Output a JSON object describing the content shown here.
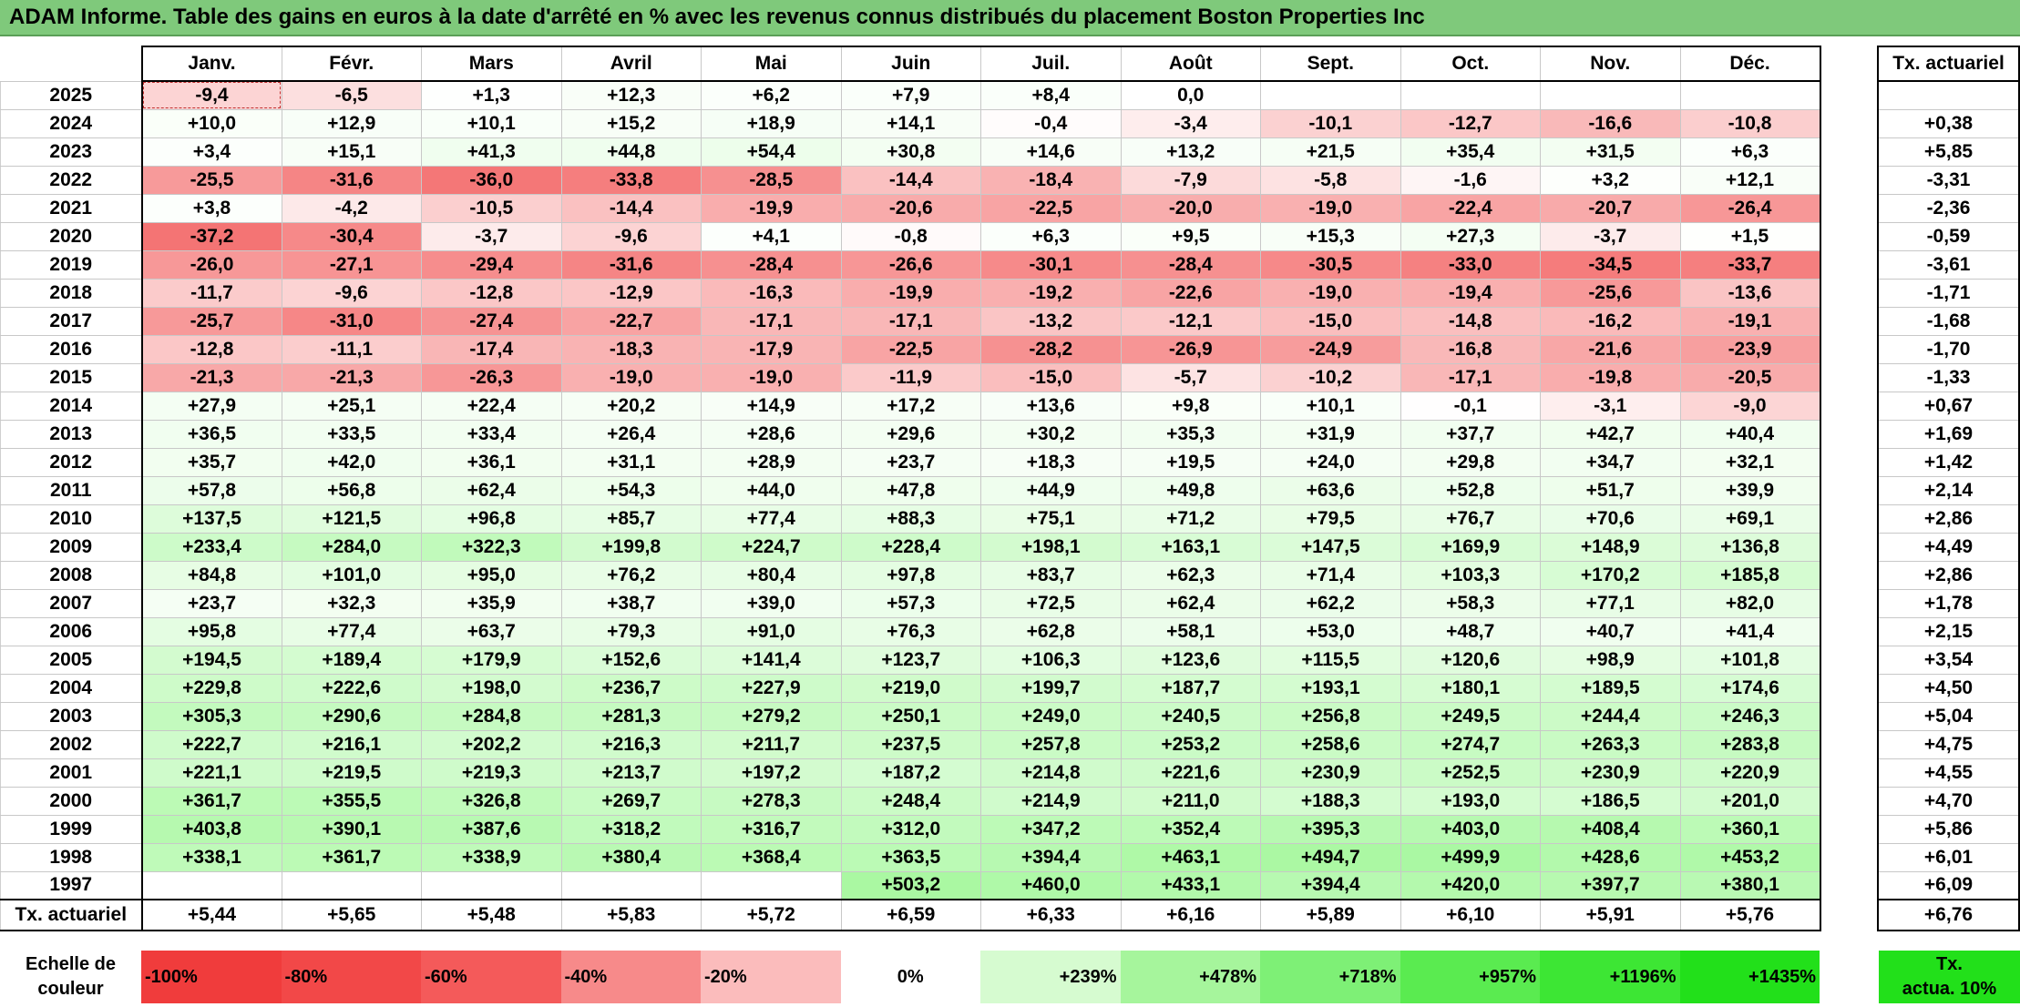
{
  "title": "ADAM Informe. Table des gains en euros à la date d'arrêté en % avec les revenus connus distribués du placement Boston Properties Inc",
  "months": [
    "Janv.",
    "Févr.",
    "Mars",
    "Avril",
    "Mai",
    "Juin",
    "Juil.",
    "Août",
    "Sept.",
    "Oct.",
    "Nov.",
    "Déc."
  ],
  "side_header": "Tx. actuariel",
  "rows": [
    {
      "year": "2025",
      "values": [
        "-9,4",
        "-6,5",
        "+1,3",
        "+12,3",
        "+6,2",
        "+7,9",
        "+8,4",
        "0,0",
        "",
        "",
        "",
        ""
      ],
      "rate": ""
    },
    {
      "year": "2024",
      "values": [
        "+10,0",
        "+12,9",
        "+10,1",
        "+15,2",
        "+18,9",
        "+14,1",
        "-0,4",
        "-3,4",
        "-10,1",
        "-12,7",
        "-16,6",
        "-10,8"
      ],
      "rate": "+0,38"
    },
    {
      "year": "2023",
      "values": [
        "+3,4",
        "+15,1",
        "+41,3",
        "+44,8",
        "+54,4",
        "+30,8",
        "+14,6",
        "+13,2",
        "+21,5",
        "+35,4",
        "+31,5",
        "+6,3"
      ],
      "rate": "+5,85"
    },
    {
      "year": "2022",
      "values": [
        "-25,5",
        "-31,6",
        "-36,0",
        "-33,8",
        "-28,5",
        "-14,4",
        "-18,4",
        "-7,9",
        "-5,8",
        "-1,6",
        "+3,2",
        "+12,1"
      ],
      "rate": "-3,31"
    },
    {
      "year": "2021",
      "values": [
        "+3,8",
        "-4,2",
        "-10,5",
        "-14,4",
        "-19,9",
        "-20,6",
        "-22,5",
        "-20,0",
        "-19,0",
        "-22,4",
        "-20,7",
        "-26,4"
      ],
      "rate": "-2,36"
    },
    {
      "year": "2020",
      "values": [
        "-37,2",
        "-30,4",
        "-3,7",
        "-9,6",
        "+4,1",
        "-0,8",
        "+6,3",
        "+9,5",
        "+15,3",
        "+27,3",
        "-3,7",
        "+1,5"
      ],
      "rate": "-0,59"
    },
    {
      "year": "2019",
      "values": [
        "-26,0",
        "-27,1",
        "-29,4",
        "-31,6",
        "-28,4",
        "-26,6",
        "-30,1",
        "-28,4",
        "-30,5",
        "-33,0",
        "-34,5",
        "-33,7"
      ],
      "rate": "-3,61"
    },
    {
      "year": "2018",
      "values": [
        "-11,7",
        "-9,6",
        "-12,8",
        "-12,9",
        "-16,3",
        "-19,9",
        "-19,2",
        "-22,6",
        "-19,0",
        "-19,4",
        "-25,6",
        "-13,6"
      ],
      "rate": "-1,71"
    },
    {
      "year": "2017",
      "values": [
        "-25,7",
        "-31,0",
        "-27,4",
        "-22,7",
        "-17,1",
        "-17,1",
        "-13,2",
        "-12,1",
        "-15,0",
        "-14,8",
        "-16,2",
        "-19,1"
      ],
      "rate": "-1,68"
    },
    {
      "year": "2016",
      "values": [
        "-12,8",
        "-11,1",
        "-17,4",
        "-18,3",
        "-17,9",
        "-22,5",
        "-28,2",
        "-26,9",
        "-24,9",
        "-16,8",
        "-21,6",
        "-23,9"
      ],
      "rate": "-1,70"
    },
    {
      "year": "2015",
      "values": [
        "-21,3",
        "-21,3",
        "-26,3",
        "-19,0",
        "-19,0",
        "-11,9",
        "-15,0",
        "-5,7",
        "-10,2",
        "-17,1",
        "-19,8",
        "-20,5"
      ],
      "rate": "-1,33"
    },
    {
      "year": "2014",
      "values": [
        "+27,9",
        "+25,1",
        "+22,4",
        "+20,2",
        "+14,9",
        "+17,2",
        "+13,6",
        "+9,8",
        "+10,1",
        "-0,1",
        "-3,1",
        "-9,0"
      ],
      "rate": "+0,67"
    },
    {
      "year": "2013",
      "values": [
        "+36,5",
        "+33,5",
        "+33,4",
        "+26,4",
        "+28,6",
        "+29,6",
        "+30,2",
        "+35,3",
        "+31,9",
        "+37,7",
        "+42,7",
        "+40,4"
      ],
      "rate": "+1,69"
    },
    {
      "year": "2012",
      "values": [
        "+35,7",
        "+42,0",
        "+36,1",
        "+31,1",
        "+28,9",
        "+23,7",
        "+18,3",
        "+19,5",
        "+24,0",
        "+29,8",
        "+34,7",
        "+32,1"
      ],
      "rate": "+1,42"
    },
    {
      "year": "2011",
      "values": [
        "+57,8",
        "+56,8",
        "+62,4",
        "+54,3",
        "+44,0",
        "+47,8",
        "+44,9",
        "+49,8",
        "+63,6",
        "+52,8",
        "+51,7",
        "+39,9"
      ],
      "rate": "+2,14"
    },
    {
      "year": "2010",
      "values": [
        "+137,5",
        "+121,5",
        "+96,8",
        "+85,7",
        "+77,4",
        "+88,3",
        "+75,1",
        "+71,2",
        "+79,5",
        "+76,7",
        "+70,6",
        "+69,1"
      ],
      "rate": "+2,86"
    },
    {
      "year": "2009",
      "values": [
        "+233,4",
        "+284,0",
        "+322,3",
        "+199,8",
        "+224,7",
        "+228,4",
        "+198,1",
        "+163,1",
        "+147,5",
        "+169,9",
        "+148,9",
        "+136,8"
      ],
      "rate": "+4,49"
    },
    {
      "year": "2008",
      "values": [
        "+84,8",
        "+101,0",
        "+95,0",
        "+76,2",
        "+80,4",
        "+97,8",
        "+83,7",
        "+62,3",
        "+71,4",
        "+103,3",
        "+170,2",
        "+185,8"
      ],
      "rate": "+2,86"
    },
    {
      "year": "2007",
      "values": [
        "+23,7",
        "+32,3",
        "+35,9",
        "+38,7",
        "+39,0",
        "+57,3",
        "+72,5",
        "+62,4",
        "+62,2",
        "+58,3",
        "+77,1",
        "+82,0"
      ],
      "rate": "+1,78"
    },
    {
      "year": "2006",
      "values": [
        "+95,8",
        "+77,4",
        "+63,7",
        "+79,3",
        "+91,0",
        "+76,3",
        "+62,8",
        "+58,1",
        "+53,0",
        "+48,7",
        "+40,7",
        "+41,4"
      ],
      "rate": "+2,15"
    },
    {
      "year": "2005",
      "values": [
        "+194,5",
        "+189,4",
        "+179,9",
        "+152,6",
        "+141,4",
        "+123,7",
        "+106,3",
        "+123,6",
        "+115,5",
        "+120,6",
        "+98,9",
        "+101,8"
      ],
      "rate": "+3,54"
    },
    {
      "year": "2004",
      "values": [
        "+229,8",
        "+222,6",
        "+198,0",
        "+236,7",
        "+227,9",
        "+219,0",
        "+199,7",
        "+187,7",
        "+193,1",
        "+180,1",
        "+189,5",
        "+174,6"
      ],
      "rate": "+4,50"
    },
    {
      "year": "2003",
      "values": [
        "+305,3",
        "+290,6",
        "+284,8",
        "+281,3",
        "+279,2",
        "+250,1",
        "+249,0",
        "+240,5",
        "+256,8",
        "+249,5",
        "+244,4",
        "+246,3"
      ],
      "rate": "+5,04"
    },
    {
      "year": "2002",
      "values": [
        "+222,7",
        "+216,1",
        "+202,2",
        "+216,3",
        "+211,7",
        "+237,5",
        "+257,8",
        "+253,2",
        "+258,6",
        "+274,7",
        "+263,3",
        "+283,8"
      ],
      "rate": "+4,75"
    },
    {
      "year": "2001",
      "values": [
        "+221,1",
        "+219,5",
        "+219,3",
        "+213,7",
        "+197,2",
        "+187,2",
        "+214,8",
        "+221,6",
        "+230,9",
        "+252,5",
        "+230,9",
        "+220,9"
      ],
      "rate": "+4,55"
    },
    {
      "year": "2000",
      "values": [
        "+361,7",
        "+355,5",
        "+326,8",
        "+269,7",
        "+278,3",
        "+248,4",
        "+214,9",
        "+211,0",
        "+188,3",
        "+193,0",
        "+186,5",
        "+201,0"
      ],
      "rate": "+4,70"
    },
    {
      "year": "1999",
      "values": [
        "+403,8",
        "+390,1",
        "+387,6",
        "+318,2",
        "+316,7",
        "+312,0",
        "+347,2",
        "+352,4",
        "+395,3",
        "+403,0",
        "+408,4",
        "+360,1"
      ],
      "rate": "+5,86"
    },
    {
      "year": "1998",
      "values": [
        "+338,1",
        "+361,7",
        "+338,9",
        "+380,4",
        "+368,4",
        "+363,5",
        "+394,4",
        "+463,1",
        "+494,7",
        "+499,9",
        "+428,6",
        "+453,2"
      ],
      "rate": "+6,01"
    },
    {
      "year": "1997",
      "values": [
        "",
        "",
        "",
        "",
        "",
        "+503,2",
        "+460,0",
        "+433,1",
        "+394,4",
        "+420,0",
        "+397,7",
        "+380,1"
      ],
      "rate": "+6,09"
    }
  ],
  "totals": {
    "label": "Tx. actuariel",
    "values": [
      "+5,44",
      "+5,65",
      "+5,48",
      "+5,83",
      "+5,72",
      "+6,59",
      "+6,33",
      "+6,16",
      "+5,89",
      "+6,10",
      "+5,91",
      "+5,76"
    ],
    "rate": "+6,76"
  },
  "scale": {
    "label_line1": "Echelle de",
    "label_line2": "couleur",
    "items": [
      {
        "label": "-100%",
        "color": "#f03c3c"
      },
      {
        "label": "-80%",
        "color": "#f24848"
      },
      {
        "label": "-60%",
        "color": "#f45a5a"
      },
      {
        "label": "-40%",
        "color": "#f78a8a"
      },
      {
        "label": "-20%",
        "color": "#fbbcbc"
      },
      {
        "label": "0%",
        "color": "#ffffff"
      },
      {
        "label": "+239%",
        "color": "#d6fbd0"
      },
      {
        "label": "+478%",
        "color": "#a6f59c"
      },
      {
        "label": "+718%",
        "color": "#7ef076"
      },
      {
        "label": "+957%",
        "color": "#5aeb50"
      },
      {
        "label": "+1196%",
        "color": "#3de634"
      },
      {
        "label": "+1435%",
        "color": "#22e01a"
      }
    ],
    "side_line1": "Tx.",
    "side_line2": "actua. 10%",
    "side_color": "#22e01a"
  },
  "colors": {
    "title_bg": "#7fc97b",
    "neg_max": "#f03c3c",
    "pos_max": "#22e01a"
  }
}
